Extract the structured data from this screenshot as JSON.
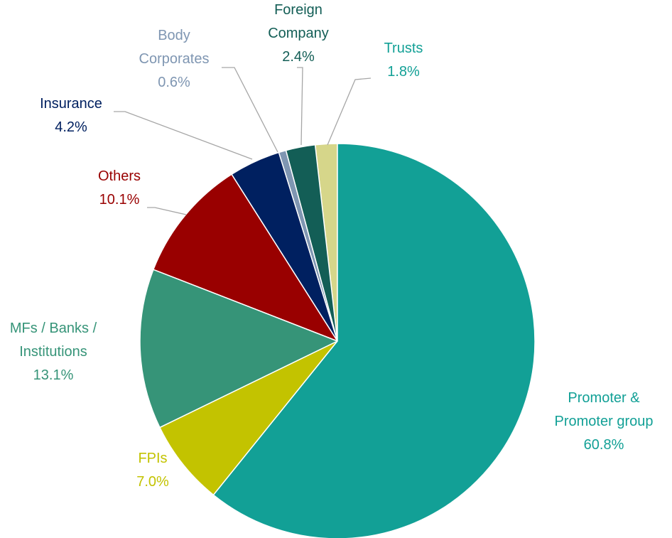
{
  "chart_data": {
    "type": "pie",
    "categories": [
      "Promoter & Promoter group",
      "FPIs",
      "MFs / Banks / Institutions",
      "Others",
      "Insurance",
      "Body Corporates",
      "Foreign Company",
      "Trusts"
    ],
    "values": [
      60.8,
      7.0,
      13.1,
      10.1,
      4.2,
      0.6,
      2.4,
      1.8
    ],
    "value_labels": [
      "60.8%",
      "7.0%",
      "13.1%",
      "10.1%",
      "4.2%",
      "0.6%",
      "2.4%",
      "1.8%"
    ],
    "colors": [
      "#12a096",
      "#c3c300",
      "#369478",
      "#990000",
      "#002060",
      "#7f96b2",
      "#135e56",
      "#d6d68a"
    ],
    "label_colors": [
      "#12a096",
      "#c3c300",
      "#369478",
      "#990000",
      "#002060",
      "#7f96b2",
      "#135e56",
      "#12a096"
    ]
  }
}
